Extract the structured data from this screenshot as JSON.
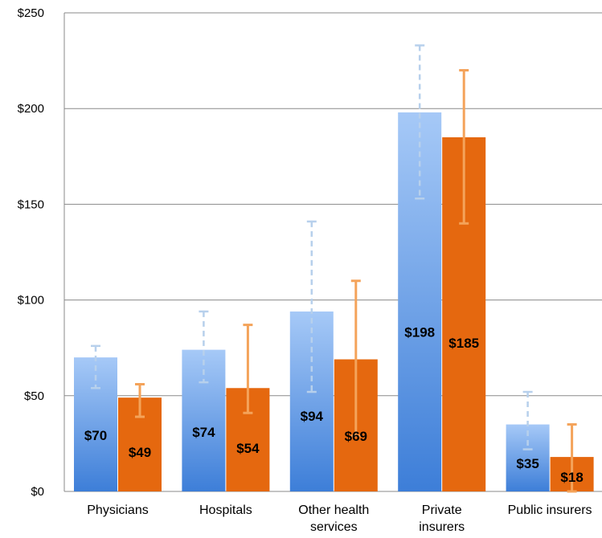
{
  "chart_data": {
    "type": "bar",
    "title": "",
    "xlabel": "",
    "ylabel": "",
    "ylim": [
      0,
      250
    ],
    "y_ticks": [
      {
        "value": 0,
        "label": "$0"
      },
      {
        "value": 50,
        "label": "$50"
      },
      {
        "value": 100,
        "label": "$100"
      },
      {
        "value": 150,
        "label": "$150"
      },
      {
        "value": 200,
        "label": "$200"
      },
      {
        "value": 250,
        "label": "$250"
      }
    ],
    "grid": true,
    "categories": [
      [
        "Physicians"
      ],
      [
        "Hospitals"
      ],
      [
        "Other health",
        "services"
      ],
      [
        "Private",
        "insurers"
      ],
      [
        "Public insurers"
      ]
    ],
    "series": [
      {
        "values": [
          70,
          74,
          94,
          198,
          35
        ],
        "labels": [
          "$70",
          "$74",
          "$94",
          "$198",
          "$35"
        ],
        "error_low": [
          54,
          57,
          52,
          153,
          22
        ],
        "error_high": [
          76,
          94,
          141,
          233,
          52
        ],
        "color_top": "#a6c9f7",
        "color_bottom": "#3d7ed8",
        "error_color": "#b7d0ec",
        "error_style": "dashed"
      },
      {
        "values": [
          49,
          54,
          69,
          185,
          18
        ],
        "labels": [
          "$49",
          "$54",
          "$69",
          "$185",
          "$18"
        ],
        "error_low": [
          39,
          41,
          29,
          140,
          0
        ],
        "error_high": [
          56,
          87,
          110,
          220,
          35
        ],
        "color": "#e5680f",
        "error_color": "#f4a35a",
        "error_style": "solid"
      }
    ]
  }
}
